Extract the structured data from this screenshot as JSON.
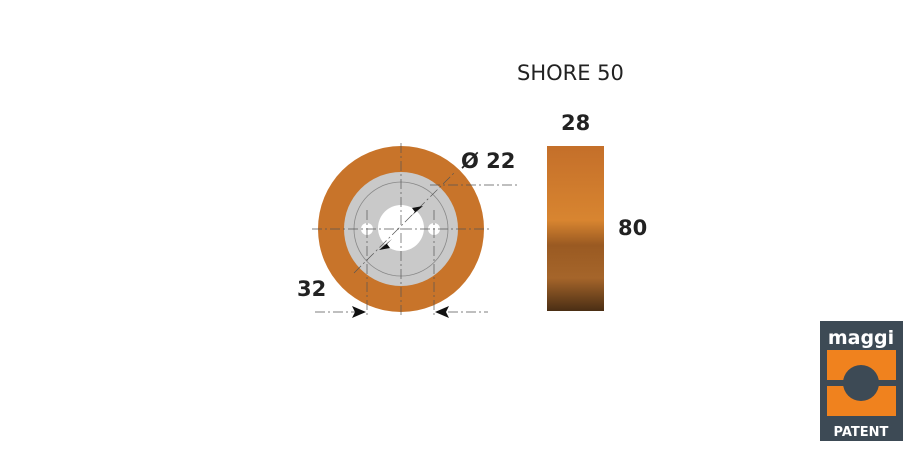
{
  "title": "SHORE 50",
  "dimensions": {
    "width": "28",
    "height": "80",
    "bore": "Ø 22",
    "hole_spacing": "32"
  },
  "colors": {
    "polyurethane": "#c8742a",
    "hub": "#c9c9c9",
    "logo_dark": "#3d4a55",
    "logo_orange": "#f0821e"
  },
  "logo": {
    "top": "maggi",
    "bottom": "PATENT"
  }
}
